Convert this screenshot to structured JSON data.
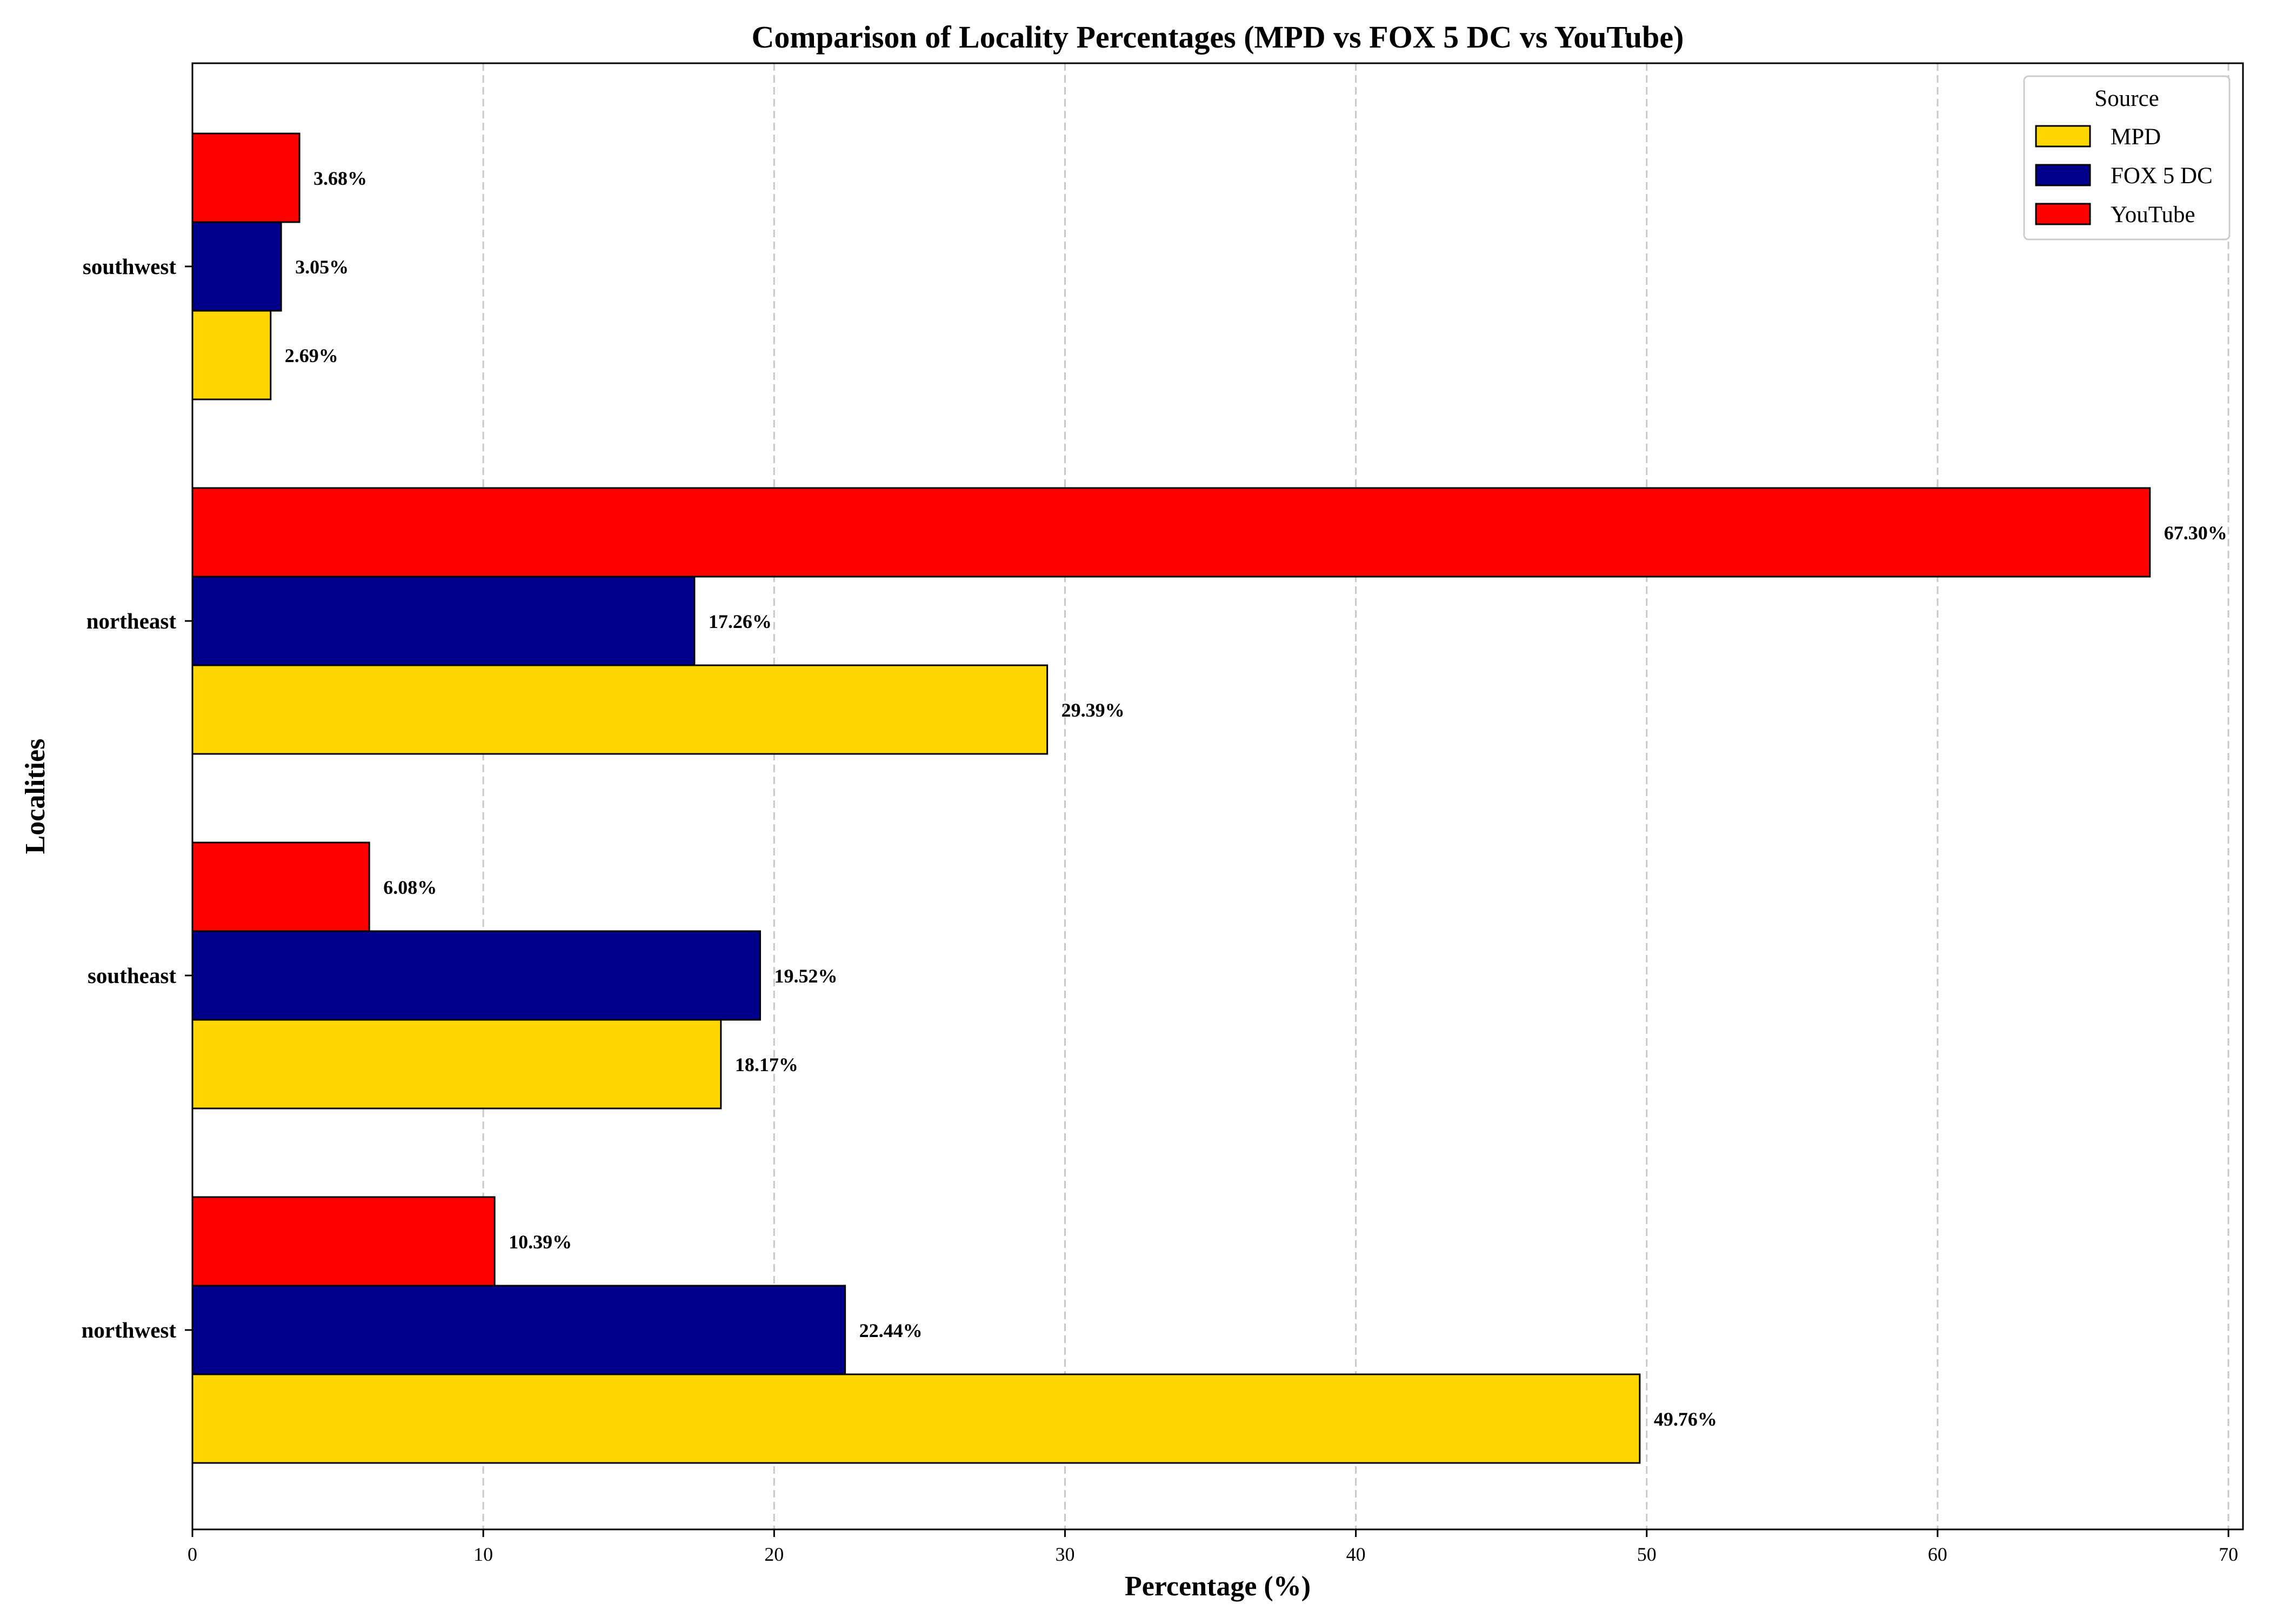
{
  "chart_data": {
    "type": "bar",
    "orientation": "horizontal",
    "title": "Comparison of Locality Percentages (MPD vs FOX 5 DC vs YouTube)",
    "xlabel": "Percentage (%)",
    "ylabel": "Localities",
    "xlim": [
      0,
      70.5
    ],
    "xticks": [
      0,
      10,
      20,
      30,
      40,
      50,
      60,
      70
    ],
    "grid": "x-dashed",
    "legend": {
      "title": "Source",
      "placement": "top-right"
    },
    "categories": [
      "northwest",
      "southeast",
      "northeast",
      "southwest"
    ],
    "series": [
      {
        "name": "MPD",
        "color": "#FFD700",
        "values": [
          49.76,
          18.17,
          29.39,
          2.69
        ],
        "labels": [
          "49.76%",
          "18.17%",
          "29.39%",
          "2.69%"
        ]
      },
      {
        "name": "FOX 5 DC",
        "color": "#00008B",
        "values": [
          22.44,
          19.52,
          17.26,
          3.05
        ],
        "labels": [
          "22.44%",
          "19.52%",
          "17.26%",
          "3.05%"
        ]
      },
      {
        "name": "YouTube",
        "color": "#FF0000",
        "values": [
          10.39,
          6.08,
          67.3,
          3.68
        ],
        "labels": [
          "10.39%",
          "6.08%",
          "67.30%",
          "3.68%"
        ]
      }
    ]
  }
}
